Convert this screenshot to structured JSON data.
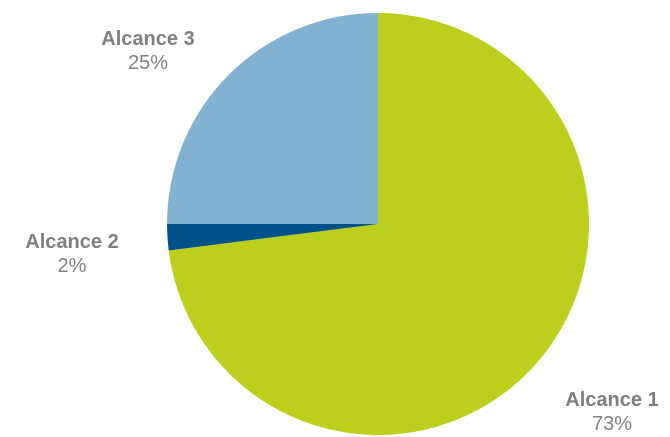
{
  "chart_data": {
    "type": "pie",
    "title": "",
    "start_angle_deg": 0,
    "direction": "clockwise",
    "label_color": "#7f7f7f",
    "slices": [
      {
        "label": "Alcance 1",
        "value": 73,
        "display": "73%",
        "color": "#bccf1d"
      },
      {
        "label": "Alcance 2",
        "value": 2,
        "display": "2%",
        "color": "#005289"
      },
      {
        "label": "Alcance 3",
        "value": 25,
        "display": "25%",
        "color": "#81b2d1"
      }
    ]
  }
}
